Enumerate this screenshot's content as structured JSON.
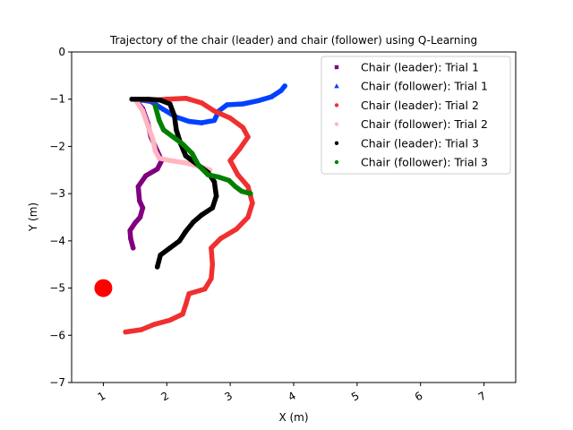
{
  "chart_data": {
    "type": "scatter",
    "title": "Trajectory of the chair (leader) and chair (follower) using Q-Learning",
    "xlabel": "X (m)",
    "ylabel": "Y (m)",
    "xlim": [
      0.5,
      7.5
    ],
    "ylim": [
      -7,
      0
    ],
    "xticks": [
      1,
      2,
      3,
      4,
      5,
      6,
      7
    ],
    "yticks": [
      0,
      -1,
      -2,
      -3,
      -4,
      -5,
      -6,
      -7
    ],
    "xtick_labels": [
      "1",
      "2",
      "3",
      "4",
      "5",
      "6",
      "7"
    ],
    "ytick_labels": [
      "0",
      "−1",
      "−2",
      "−3",
      "−4",
      "−5",
      "−6",
      "−7"
    ],
    "grid": false,
    "legend_position": "top-right",
    "target": {
      "x": 1.0,
      "y": -5.0,
      "color": "#ff0000"
    },
    "series": [
      {
        "name": "Chair (leader): Trial 1",
        "color": "#800080",
        "marker": "square",
        "points": [
          [
            1.5,
            -1.0
          ],
          [
            1.62,
            -1.2
          ],
          [
            1.7,
            -1.5
          ],
          [
            1.75,
            -1.8
          ],
          [
            1.85,
            -2.1
          ],
          [
            1.92,
            -2.3
          ],
          [
            1.85,
            -2.48
          ],
          [
            1.67,
            -2.62
          ],
          [
            1.55,
            -2.85
          ],
          [
            1.57,
            -3.15
          ],
          [
            1.62,
            -3.3
          ],
          [
            1.58,
            -3.5
          ],
          [
            1.5,
            -3.62
          ],
          [
            1.42,
            -3.78
          ],
          [
            1.43,
            -3.95
          ],
          [
            1.47,
            -4.15
          ]
        ]
      },
      {
        "name": "Chair (follower): Trial 1",
        "color": "#0040ff",
        "marker": "triangle",
        "points": [
          [
            1.5,
            -1.0
          ],
          [
            1.75,
            -1.05
          ],
          [
            1.95,
            -1.22
          ],
          [
            2.15,
            -1.38
          ],
          [
            2.35,
            -1.47
          ],
          [
            2.55,
            -1.5
          ],
          [
            2.75,
            -1.45
          ],
          [
            2.82,
            -1.25
          ],
          [
            2.95,
            -1.12
          ],
          [
            3.2,
            -1.1
          ],
          [
            3.45,
            -1.03
          ],
          [
            3.65,
            -0.95
          ],
          [
            3.8,
            -0.82
          ],
          [
            3.86,
            -0.72
          ]
        ]
      },
      {
        "name": "Chair (leader): Trial 2",
        "color": "#f03030",
        "marker": "circle",
        "points": [
          [
            1.55,
            -1.0
          ],
          [
            1.8,
            -1.02
          ],
          [
            2.0,
            -1.0
          ],
          [
            2.3,
            -0.98
          ],
          [
            2.55,
            -1.08
          ],
          [
            2.75,
            -1.25
          ],
          [
            3.0,
            -1.4
          ],
          [
            3.2,
            -1.6
          ],
          [
            3.28,
            -1.8
          ],
          [
            3.15,
            -2.05
          ],
          [
            3.0,
            -2.3
          ],
          [
            3.12,
            -2.6
          ],
          [
            3.28,
            -2.85
          ],
          [
            3.35,
            -3.2
          ],
          [
            3.28,
            -3.5
          ],
          [
            3.1,
            -3.75
          ],
          [
            2.85,
            -3.95
          ],
          [
            2.7,
            -4.15
          ],
          [
            2.72,
            -4.5
          ],
          [
            2.7,
            -4.8
          ],
          [
            2.6,
            -5.02
          ],
          [
            2.35,
            -5.12
          ],
          [
            2.3,
            -5.35
          ],
          [
            2.25,
            -5.55
          ],
          [
            2.05,
            -5.68
          ],
          [
            1.8,
            -5.77
          ],
          [
            1.6,
            -5.88
          ],
          [
            1.35,
            -5.93
          ]
        ]
      },
      {
        "name": "Chair (follower): Trial 2",
        "color": "#ffb6c1",
        "marker": "circle",
        "points": [
          [
            1.5,
            -1.0
          ],
          [
            1.62,
            -1.25
          ],
          [
            1.7,
            -1.55
          ],
          [
            1.78,
            -1.85
          ],
          [
            1.82,
            -2.1
          ],
          [
            1.88,
            -2.25
          ],
          [
            2.05,
            -2.3
          ],
          [
            2.3,
            -2.35
          ],
          [
            2.5,
            -2.42
          ],
          [
            2.68,
            -2.5
          ]
        ]
      },
      {
        "name": "Chair (leader): Trial 3",
        "color": "#000000",
        "marker": "circle",
        "points": [
          [
            1.45,
            -1.0
          ],
          [
            1.7,
            -1.0
          ],
          [
            1.9,
            -1.02
          ],
          [
            2.05,
            -1.1
          ],
          [
            2.12,
            -1.35
          ],
          [
            2.15,
            -1.65
          ],
          [
            2.22,
            -1.95
          ],
          [
            2.3,
            -2.2
          ],
          [
            2.5,
            -2.4
          ],
          [
            2.65,
            -2.55
          ],
          [
            2.75,
            -2.75
          ],
          [
            2.78,
            -3.05
          ],
          [
            2.72,
            -3.3
          ],
          [
            2.55,
            -3.45
          ],
          [
            2.42,
            -3.6
          ],
          [
            2.3,
            -3.8
          ],
          [
            2.2,
            -4.0
          ],
          [
            2.05,
            -4.15
          ],
          [
            1.9,
            -4.3
          ],
          [
            1.85,
            -4.55
          ]
        ]
      },
      {
        "name": "Chair (follower): Trial 3",
        "color": "#008000",
        "marker": "circle",
        "points": [
          [
            1.82,
            -1.15
          ],
          [
            1.88,
            -1.45
          ],
          [
            1.95,
            -1.65
          ],
          [
            2.1,
            -1.8
          ],
          [
            2.25,
            -1.95
          ],
          [
            2.4,
            -2.15
          ],
          [
            2.5,
            -2.4
          ],
          [
            2.65,
            -2.6
          ],
          [
            2.82,
            -2.65
          ],
          [
            2.98,
            -2.72
          ],
          [
            3.08,
            -2.85
          ],
          [
            3.18,
            -2.95
          ],
          [
            3.32,
            -3.0
          ]
        ]
      }
    ]
  }
}
